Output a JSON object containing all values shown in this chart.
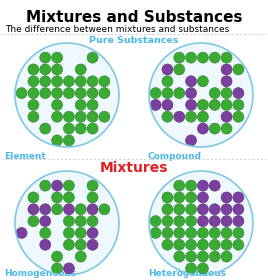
{
  "title": "Mixtures and Substances",
  "subtitle": "The difference between mixtures and substances",
  "title_fontsize": 11,
  "subtitle_fontsize": 6.5,
  "bg_color": "#ffffff",
  "title_color": "#000000",
  "subtitle_color": "#000000",
  "pure_substances_label": "Pure Substances",
  "pure_substances_color": "#4db8e8",
  "mixtures_label": "Mixtures",
  "mixtures_color": "#e02020",
  "element_label": "Element",
  "element_color": "#4db8e8",
  "compound_label": "Compound",
  "compound_color": "#4db8e8",
  "homogeneous_label": "Homogeneous",
  "homogeneous_color": "#4db8e8",
  "heterogeneous_label": "Heterogeneous",
  "heterogeneous_color": "#4db8e8",
  "circle_edge_color": "#7ec8e3",
  "circle_face_color": "#f0f8ff",
  "green_dot_color": "#3aaa35",
  "green_dot_edge": "#2a8525",
  "purple_dot_color": "#7b3f9e",
  "purple_dot_edge": "#5a2e78",
  "dashed_line_color": "#bbbbbb",
  "label_fontsize": 6.5,
  "mixtures_fontsize": 10
}
